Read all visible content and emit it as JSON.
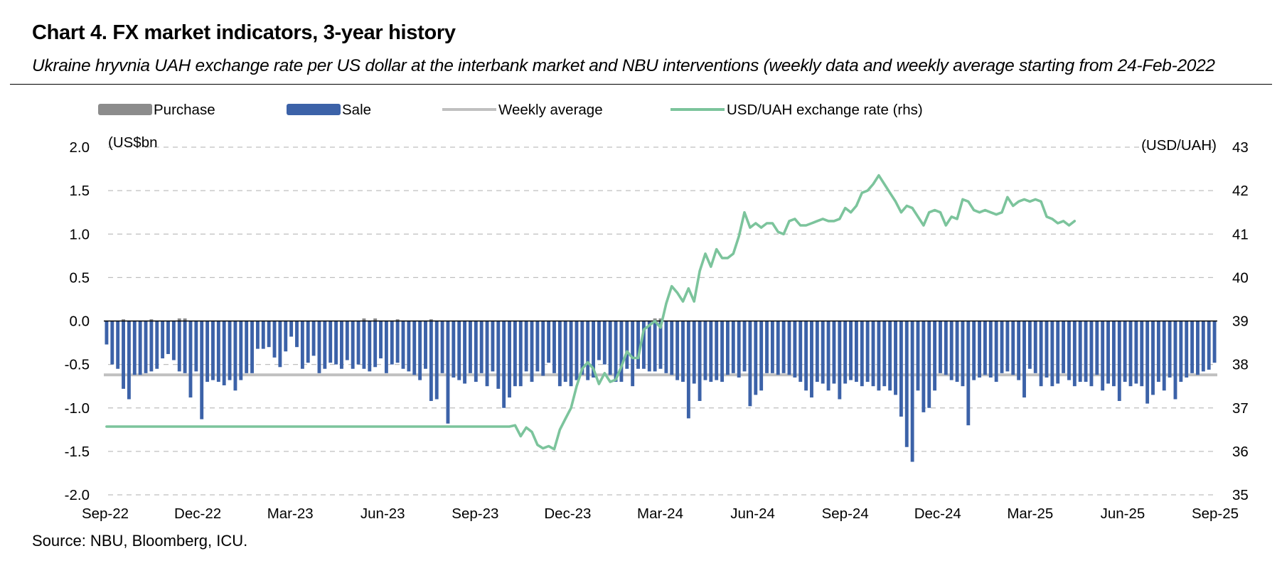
{
  "title": "Chart 4. FX market indicators, 3-year history",
  "subtitle": "Ukraine hryvnia UAH exchange rate per US dollar at the interbank market and NBU interventions (weekly data and weekly average starting from 24-Feb-2022",
  "source": "Source: NBU, Bloomberg, ICU.",
  "colors": {
    "purchase": "#8c8c8c",
    "sale": "#3c62a8",
    "weekly_average": "#c0c0c0",
    "fx_rate": "#7cc49c",
    "grid": "#bfbfbf"
  },
  "legend": [
    {
      "key": "purchase",
      "label": "Purchase",
      "icon": "swatch"
    },
    {
      "key": "sale",
      "label": "Sale",
      "icon": "swatch"
    },
    {
      "key": "weekly_average",
      "label": "Weekly average",
      "icon": "line"
    },
    {
      "key": "fx_rate",
      "label": "USD/UAH exchange rate (rhs)",
      "icon": "line"
    }
  ],
  "chart_data": {
    "type": "bar",
    "left_axis": {
      "unit": "(US$bn",
      "ylim": [
        -2.0,
        2.0
      ],
      "ticks": [
        "2.0",
        "1.5",
        "1.0",
        "0.5",
        "0.0",
        "-0.5",
        "-1.0",
        "-1.5",
        "-2.0"
      ]
    },
    "right_axis": {
      "unit": "(USD/UAH)",
      "ylim": [
        35,
        43
      ],
      "ticks": [
        "43",
        "42",
        "41",
        "40",
        "39",
        "38",
        "37",
        "36",
        "35"
      ]
    },
    "x_tick_labels": [
      "Sep-22",
      "Dec-22",
      "Mar-23",
      "Jun-23",
      "Sep-23",
      "Dec-23",
      "Mar-24",
      "Jun-24",
      "Sep-24",
      "Dec-24",
      "Mar-25",
      "Jun-25",
      "Sep-25"
    ],
    "grid": "horizontal dashed",
    "legend_position": "top",
    "weekly_average": -0.62,
    "sale": [
      -0.27,
      -0.5,
      -0.55,
      -0.78,
      -0.9,
      -0.62,
      -0.62,
      -0.6,
      -0.58,
      -0.55,
      -0.43,
      -0.38,
      -0.45,
      -0.58,
      -0.6,
      -0.88,
      -0.58,
      -1.13,
      -0.7,
      -0.68,
      -0.7,
      -0.74,
      -0.68,
      -0.8,
      -0.68,
      -0.6,
      -0.6,
      -0.32,
      -0.32,
      -0.3,
      -0.42,
      -0.53,
      -0.35,
      -0.18,
      -0.3,
      -0.55,
      -0.48,
      -0.4,
      -0.6,
      -0.55,
      -0.48,
      -0.5,
      -0.55,
      -0.45,
      -0.55,
      -0.5,
      -0.55,
      -0.58,
      -0.53,
      -0.43,
      -0.6,
      -0.5,
      -0.48,
      -0.55,
      -0.58,
      -0.62,
      -0.68,
      -0.55,
      -0.92,
      -0.9,
      -0.6,
      -1.18,
      -0.65,
      -0.68,
      -0.72,
      -0.6,
      -0.7,
      -0.6,
      -0.75,
      -0.58,
      -0.78,
      -1.0,
      -0.88,
      -0.75,
      -0.75,
      -0.58,
      -0.7,
      -0.58,
      -0.63,
      -0.48,
      -0.6,
      -0.75,
      -0.7,
      -0.75,
      -0.68,
      -0.62,
      -0.68,
      -0.65,
      -0.45,
      -0.5,
      -0.62,
      -0.7,
      -0.7,
      -0.55,
      -0.75,
      -0.55,
      -0.55,
      -0.58,
      -0.58,
      -0.55,
      -0.6,
      -0.62,
      -0.68,
      -0.7,
      -1.12,
      -0.72,
      -0.92,
      -0.68,
      -0.7,
      -0.68,
      -0.7,
      -0.62,
      -0.6,
      -0.65,
      -0.58,
      -0.98,
      -0.85,
      -0.8,
      -0.6,
      -0.6,
      -0.62,
      -0.6,
      -0.62,
      -0.65,
      -0.7,
      -0.8,
      -0.88,
      -0.7,
      -0.72,
      -0.8,
      -0.72,
      -0.9,
      -0.72,
      -0.68,
      -0.7,
      -0.75,
      -0.7,
      -0.75,
      -0.8,
      -0.75,
      -0.8,
      -0.85,
      -1.1,
      -1.45,
      -1.62,
      -0.8,
      -1.05,
      -1.0,
      -0.8,
      -0.6,
      -0.62,
      -0.68,
      -0.7,
      -0.75,
      -1.2,
      -0.68,
      -0.65,
      -0.62,
      -0.65,
      -0.7,
      -0.6,
      -0.58,
      -0.62,
      -0.68,
      -0.88,
      -0.55,
      -0.6,
      -0.75,
      -0.65,
      -0.75,
      -0.72,
      -0.6,
      -0.68,
      -0.75,
      -0.7,
      -0.7,
      -0.75,
      -0.62,
      -0.8,
      -0.72,
      -0.75,
      -0.92,
      -0.7,
      -0.75,
      -0.72,
      -0.75,
      -0.95,
      -0.85,
      -0.7,
      -0.8,
      -0.65,
      -0.9,
      -0.7,
      -0.65,
      -0.6,
      -0.62,
      -0.58,
      -0.56,
      -0.48
    ],
    "purchase_weeks": [
      {
        "week": 3,
        "value": 0.02
      },
      {
        "week": 8,
        "value": 0.02
      },
      {
        "week": 13,
        "value": 0.03
      },
      {
        "week": 14,
        "value": 0.03
      },
      {
        "week": 46,
        "value": 0.03
      },
      {
        "week": 48,
        "value": 0.03
      },
      {
        "week": 52,
        "value": 0.02
      },
      {
        "week": 58,
        "value": 0.02
      },
      {
        "week": 98,
        "value": 0.03
      },
      {
        "week": 99,
        "value": 0.03
      }
    ],
    "fx_rate_points": [
      {
        "week": 0,
        "value": 36.57
      },
      {
        "week": 72,
        "value": 36.57
      },
      {
        "week": 73,
        "value": 36.6
      },
      {
        "week": 74,
        "value": 36.35
      },
      {
        "week": 75,
        "value": 36.55
      },
      {
        "week": 76,
        "value": 36.45
      },
      {
        "week": 77,
        "value": 36.15
      },
      {
        "week": 78,
        "value": 36.07
      },
      {
        "week": 79,
        "value": 36.12
      },
      {
        "week": 80,
        "value": 36.05
      },
      {
        "week": 81,
        "value": 36.5
      },
      {
        "week": 82,
        "value": 36.75
      },
      {
        "week": 83,
        "value": 37.0
      },
      {
        "week": 84,
        "value": 37.5
      },
      {
        "week": 85,
        "value": 37.9
      },
      {
        "week": 86,
        "value": 38.05
      },
      {
        "week": 87,
        "value": 37.9
      },
      {
        "week": 88,
        "value": 37.55
      },
      {
        "week": 89,
        "value": 37.8
      },
      {
        "week": 90,
        "value": 37.6
      },
      {
        "week": 91,
        "value": 37.65
      },
      {
        "week": 92,
        "value": 37.95
      },
      {
        "week": 93,
        "value": 38.3
      },
      {
        "week": 94,
        "value": 38.15
      },
      {
        "week": 95,
        "value": 38.15
      },
      {
        "week": 96,
        "value": 38.8
      },
      {
        "week": 97,
        "value": 38.9
      },
      {
        "week": 98,
        "value": 39.0
      },
      {
        "week": 99,
        "value": 38.85
      },
      {
        "week": 100,
        "value": 39.4
      },
      {
        "week": 101,
        "value": 39.8
      },
      {
        "week": 102,
        "value": 39.65
      },
      {
        "week": 103,
        "value": 39.45
      },
      {
        "week": 104,
        "value": 39.75
      },
      {
        "week": 105,
        "value": 39.45
      },
      {
        "week": 106,
        "value": 40.15
      },
      {
        "week": 107,
        "value": 40.55
      },
      {
        "week": 108,
        "value": 40.25
      },
      {
        "week": 109,
        "value": 40.65
      },
      {
        "week": 110,
        "value": 40.45
      },
      {
        "week": 111,
        "value": 40.45
      },
      {
        "week": 112,
        "value": 40.55
      },
      {
        "week": 113,
        "value": 40.95
      },
      {
        "week": 114,
        "value": 41.5
      },
      {
        "week": 115,
        "value": 41.15
      },
      {
        "week": 116,
        "value": 41.25
      },
      {
        "week": 117,
        "value": 41.15
      },
      {
        "week": 118,
        "value": 41.25
      },
      {
        "week": 119,
        "value": 41.25
      },
      {
        "week": 120,
        "value": 41.05
      },
      {
        "week": 121,
        "value": 41.0
      },
      {
        "week": 122,
        "value": 41.3
      },
      {
        "week": 123,
        "value": 41.35
      },
      {
        "week": 124,
        "value": 41.2
      },
      {
        "week": 125,
        "value": 41.2
      },
      {
        "week": 126,
        "value": 41.25
      },
      {
        "week": 127,
        "value": 41.3
      },
      {
        "week": 128,
        "value": 41.35
      },
      {
        "week": 129,
        "value": 41.3
      },
      {
        "week": 130,
        "value": 41.3
      },
      {
        "week": 131,
        "value": 41.35
      },
      {
        "week": 132,
        "value": 41.6
      },
      {
        "week": 133,
        "value": 41.5
      },
      {
        "week": 134,
        "value": 41.65
      },
      {
        "week": 135,
        "value": 41.95
      },
      {
        "week": 136,
        "value": 42.0
      },
      {
        "week": 137,
        "value": 42.15
      },
      {
        "week": 138,
        "value": 42.35
      },
      {
        "week": 139,
        "value": 42.15
      },
      {
        "week": 140,
        "value": 41.95
      },
      {
        "week": 141,
        "value": 41.75
      },
      {
        "week": 142,
        "value": 41.5
      },
      {
        "week": 143,
        "value": 41.65
      },
      {
        "week": 144,
        "value": 41.6
      },
      {
        "week": 145,
        "value": 41.4
      },
      {
        "week": 146,
        "value": 41.2
      },
      {
        "week": 147,
        "value": 41.5
      },
      {
        "week": 148,
        "value": 41.55
      },
      {
        "week": 149,
        "value": 41.5
      },
      {
        "week": 150,
        "value": 41.2
      },
      {
        "week": 151,
        "value": 41.4
      },
      {
        "week": 152,
        "value": 41.35
      },
      {
        "week": 153,
        "value": 41.8
      },
      {
        "week": 154,
        "value": 41.75
      },
      {
        "week": 155,
        "value": 41.55
      },
      {
        "week": 156,
        "value": 41.5
      },
      {
        "week": 157,
        "value": 41.55
      },
      {
        "week": 158,
        "value": 41.5
      },
      {
        "week": 159,
        "value": 41.45
      },
      {
        "week": 160,
        "value": 41.5
      },
      {
        "week": 161,
        "value": 41.85
      },
      {
        "week": 162,
        "value": 41.65
      },
      {
        "week": 163,
        "value": 41.75
      },
      {
        "week": 164,
        "value": 41.8
      },
      {
        "week": 165,
        "value": 41.75
      },
      {
        "week": 166,
        "value": 41.8
      },
      {
        "week": 167,
        "value": 41.75
      },
      {
        "week": 168,
        "value": 41.4
      },
      {
        "week": 169,
        "value": 41.35
      },
      {
        "week": 170,
        "value": 41.25
      },
      {
        "week": 171,
        "value": 41.3
      },
      {
        "week": 172,
        "value": 41.2
      },
      {
        "week": 173,
        "value": 41.3
      }
    ]
  }
}
